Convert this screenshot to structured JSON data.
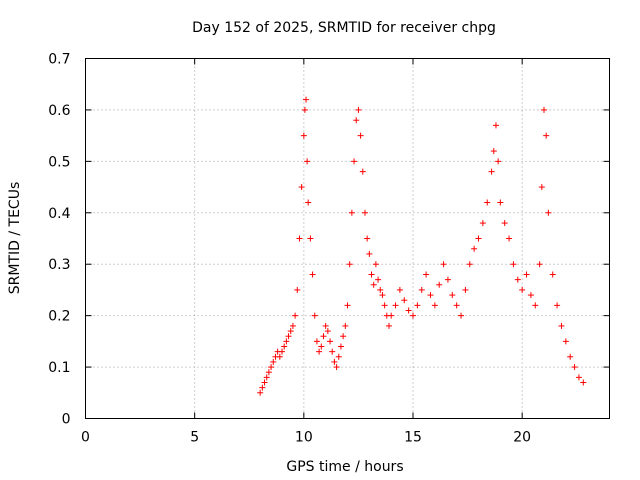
{
  "chart_data": {
    "type": "scatter",
    "title": "Day 152 of 2025, SRMTID for receiver chpg",
    "xlabel": "GPS time / hours",
    "ylabel": "SRMTID / TECUs",
    "xlim": [
      0,
      24
    ],
    "ylim": [
      0,
      0.7
    ],
    "xticks": [
      0,
      5,
      10,
      15,
      20
    ],
    "xtick_labels": [
      "0",
      "5",
      "10",
      "15",
      "20"
    ],
    "yticks": [
      0,
      0.1,
      0.2,
      0.3,
      0.4,
      0.5,
      0.6,
      0.7
    ],
    "ytick_labels": [
      "0",
      "0.1",
      "0.2",
      "0.3",
      "0.4",
      "0.5",
      "0.6",
      "0.7"
    ],
    "grid": true,
    "legend": "none",
    "marker": "+",
    "series": [
      {
        "name": "SRMTID",
        "color": "#ff0000",
        "x": [
          8.0,
          8.1,
          8.2,
          8.3,
          8.4,
          8.5,
          8.6,
          8.7,
          8.8,
          8.9,
          9.0,
          9.1,
          9.2,
          9.3,
          9.4,
          9.5,
          9.6,
          9.7,
          9.8,
          9.9,
          10.0,
          10.05,
          10.1,
          10.15,
          10.2,
          10.3,
          10.4,
          10.5,
          10.6,
          10.7,
          10.8,
          10.9,
          11.0,
          11.1,
          11.2,
          11.3,
          11.4,
          11.5,
          11.6,
          11.7,
          11.8,
          11.9,
          12.0,
          12.1,
          12.2,
          12.3,
          12.4,
          12.5,
          12.6,
          12.7,
          12.8,
          12.9,
          13.0,
          13.1,
          13.2,
          13.3,
          13.4,
          13.5,
          13.6,
          13.7,
          13.8,
          13.9,
          14.0,
          14.2,
          14.4,
          14.6,
          14.8,
          15.0,
          15.2,
          15.4,
          15.6,
          15.8,
          16.0,
          16.2,
          16.4,
          16.6,
          16.8,
          17.0,
          17.2,
          17.4,
          17.6,
          17.8,
          18.0,
          18.2,
          18.4,
          18.6,
          18.7,
          18.8,
          18.9,
          19.0,
          19.2,
          19.4,
          19.6,
          19.8,
          20.0,
          20.2,
          20.4,
          20.6,
          20.8,
          20.9,
          21.0,
          21.1,
          21.2,
          21.4,
          21.6,
          21.8,
          22.0,
          22.2,
          22.4,
          22.6,
          22.8
        ],
        "y": [
          0.05,
          0.06,
          0.07,
          0.08,
          0.09,
          0.1,
          0.11,
          0.12,
          0.13,
          0.12,
          0.13,
          0.14,
          0.15,
          0.16,
          0.17,
          0.18,
          0.2,
          0.25,
          0.35,
          0.45,
          0.55,
          0.6,
          0.62,
          0.5,
          0.42,
          0.35,
          0.28,
          0.2,
          0.15,
          0.13,
          0.14,
          0.16,
          0.18,
          0.17,
          0.15,
          0.13,
          0.11,
          0.1,
          0.12,
          0.14,
          0.16,
          0.18,
          0.22,
          0.3,
          0.4,
          0.5,
          0.58,
          0.6,
          0.55,
          0.48,
          0.4,
          0.35,
          0.32,
          0.28,
          0.26,
          0.3,
          0.27,
          0.25,
          0.24,
          0.22,
          0.2,
          0.18,
          0.2,
          0.22,
          0.25,
          0.23,
          0.21,
          0.2,
          0.22,
          0.25,
          0.28,
          0.24,
          0.22,
          0.26,
          0.3,
          0.27,
          0.24,
          0.22,
          0.2,
          0.25,
          0.3,
          0.33,
          0.35,
          0.38,
          0.42,
          0.48,
          0.52,
          0.57,
          0.5,
          0.42,
          0.38,
          0.35,
          0.3,
          0.27,
          0.25,
          0.28,
          0.24,
          0.22,
          0.3,
          0.45,
          0.6,
          0.55,
          0.4,
          0.28,
          0.22,
          0.18,
          0.15,
          0.12,
          0.1,
          0.08,
          0.07
        ]
      }
    ],
    "annotations": []
  }
}
